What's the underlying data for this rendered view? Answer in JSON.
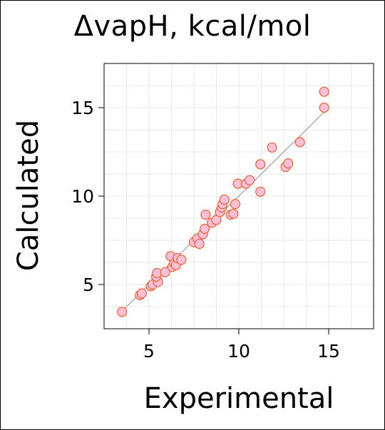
{
  "chart_data": {
    "type": "scatter",
    "title": "ΔvapH, kcal/mol",
    "xlabel": "Experimental",
    "ylabel": "Calculated",
    "xlim": [
      2.5,
      17.5
    ],
    "ylim": [
      2.5,
      17.5
    ],
    "xticks": [
      5,
      10,
      15
    ],
    "yticks": [
      5,
      10,
      15
    ],
    "grid": true,
    "reference_line": "y = x",
    "colors": {
      "point_fill": "#ffc0d8",
      "point_stroke": "#f06030",
      "reference_line": "#a0a0a0",
      "grid": "#e8e8e8",
      "axis": "#000000"
    },
    "points": [
      {
        "x": 3.5,
        "y": 3.45
      },
      {
        "x": 4.5,
        "y": 4.4
      },
      {
        "x": 4.6,
        "y": 4.5
      },
      {
        "x": 5.1,
        "y": 4.9
      },
      {
        "x": 5.2,
        "y": 5.0
      },
      {
        "x": 5.5,
        "y": 5.15
      },
      {
        "x": 5.4,
        "y": 5.45
      },
      {
        "x": 5.45,
        "y": 5.65
      },
      {
        "x": 5.9,
        "y": 5.7
      },
      {
        "x": 6.2,
        "y": 6.6
      },
      {
        "x": 6.3,
        "y": 6.0
      },
      {
        "x": 6.4,
        "y": 6.2
      },
      {
        "x": 6.5,
        "y": 6.1
      },
      {
        "x": 6.6,
        "y": 6.5
      },
      {
        "x": 6.8,
        "y": 6.4
      },
      {
        "x": 7.5,
        "y": 7.4
      },
      {
        "x": 7.7,
        "y": 7.6
      },
      {
        "x": 7.8,
        "y": 7.3
      },
      {
        "x": 8.0,
        "y": 7.85
      },
      {
        "x": 8.1,
        "y": 8.15
      },
      {
        "x": 8.15,
        "y": 8.95
      },
      {
        "x": 8.5,
        "y": 8.5
      },
      {
        "x": 8.75,
        "y": 8.65
      },
      {
        "x": 8.95,
        "y": 9.1
      },
      {
        "x": 9.05,
        "y": 9.35
      },
      {
        "x": 9.1,
        "y": 9.55
      },
      {
        "x": 9.2,
        "y": 9.8
      },
      {
        "x": 9.55,
        "y": 8.95
      },
      {
        "x": 9.7,
        "y": 9.0
      },
      {
        "x": 9.8,
        "y": 9.55
      },
      {
        "x": 9.95,
        "y": 10.7
      },
      {
        "x": 10.4,
        "y": 10.7
      },
      {
        "x": 10.6,
        "y": 10.9
      },
      {
        "x": 11.2,
        "y": 10.25
      },
      {
        "x": 11.2,
        "y": 11.8
      },
      {
        "x": 11.85,
        "y": 12.75
      },
      {
        "x": 12.6,
        "y": 11.65
      },
      {
        "x": 12.75,
        "y": 11.85
      },
      {
        "x": 13.4,
        "y": 13.05
      },
      {
        "x": 14.75,
        "y": 15.0
      },
      {
        "x": 14.75,
        "y": 15.9
      }
    ]
  }
}
